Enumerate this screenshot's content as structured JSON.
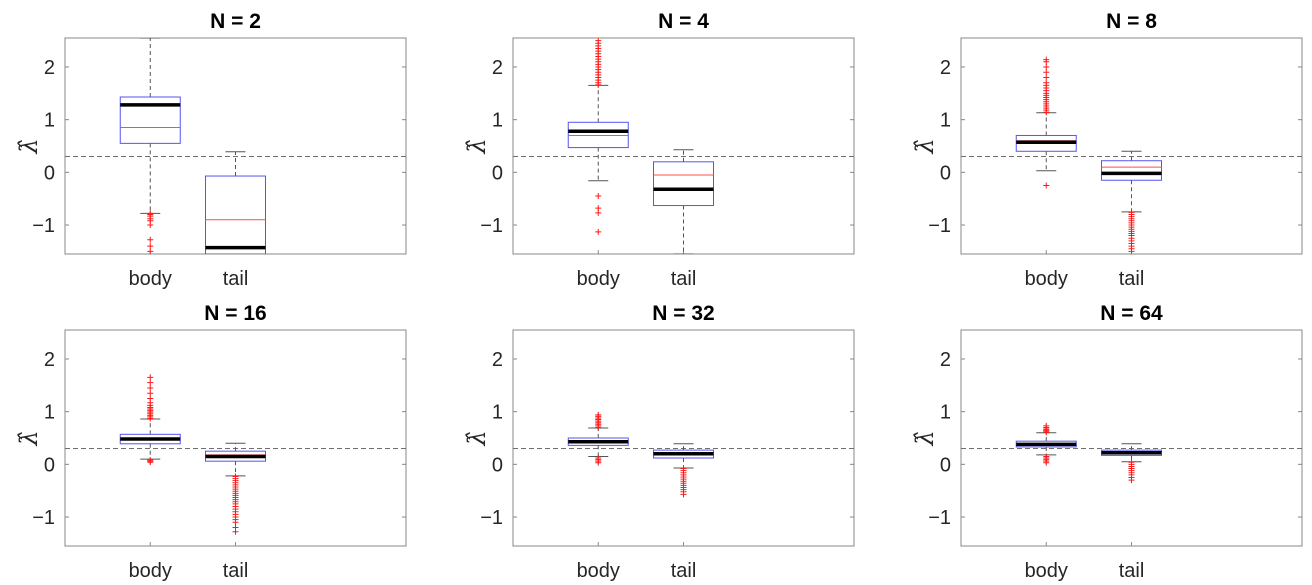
{
  "ylabel": "λ̂",
  "refline": 0.3,
  "colors": {
    "box": "#5555ee",
    "median": "#000000",
    "mean": "#ff4d4d",
    "outlier": "#ff1a1a",
    "whisker": "#555555",
    "axes": "#888888",
    "refline": "#6e6e6e"
  },
  "chart_data": [
    {
      "type": "box",
      "title": "N = 2",
      "categories": [
        "body",
        "tail"
      ],
      "ylim": [
        -1.55,
        2.55
      ],
      "yticks": [
        -1,
        0,
        1,
        2
      ],
      "boxes": [
        {
          "label": "body",
          "q1": 0.55,
          "q3": 1.43,
          "median": 1.28,
          "mean": 0.85,
          "lower_whisker": -0.78,
          "upper_whisker": 2.55,
          "outliers": [
            -0.78,
            -0.8,
            -0.83,
            -0.88,
            -0.92,
            -1.0,
            -1.28,
            -1.4,
            -1.5
          ]
        },
        {
          "label": "tail",
          "q1": -1.55,
          "q3": -0.07,
          "median": -1.43,
          "mean": -0.9,
          "lower_whisker": -1.55,
          "upper_whisker": 0.39,
          "outliers": []
        }
      ]
    },
    {
      "type": "box",
      "title": "N = 4",
      "categories": [
        "body",
        "tail"
      ],
      "ylim": [
        -1.55,
        2.55
      ],
      "yticks": [
        -1,
        0,
        1,
        2
      ],
      "boxes": [
        {
          "label": "body",
          "q1": 0.47,
          "q3": 0.95,
          "median": 0.78,
          "mean": 0.7,
          "lower_whisker": -0.16,
          "upper_whisker": 1.65,
          "outliers": [
            1.66,
            1.7,
            1.75,
            1.8,
            1.85,
            1.9,
            1.95,
            2.0,
            2.05,
            2.1,
            2.15,
            2.2,
            2.25,
            2.3,
            2.35,
            2.4,
            2.45,
            2.5,
            -0.45,
            -0.68,
            -0.77,
            -1.13
          ]
        },
        {
          "label": "tail",
          "q1": -0.63,
          "q3": 0.2,
          "median": -0.32,
          "mean": -0.05,
          "lower_whisker": -1.55,
          "upper_whisker": 0.43,
          "outliers": []
        }
      ]
    },
    {
      "type": "box",
      "title": "N = 8",
      "categories": [
        "body",
        "tail"
      ],
      "ylim": [
        -1.55,
        2.55
      ],
      "yticks": [
        -1,
        0,
        1,
        2
      ],
      "boxes": [
        {
          "label": "body",
          "q1": 0.4,
          "q3": 0.7,
          "median": 0.57,
          "mean": 0.6,
          "lower_whisker": 0.03,
          "upper_whisker": 1.13,
          "outliers": [
            1.14,
            1.18,
            1.22,
            1.26,
            1.3,
            1.34,
            1.38,
            1.42,
            1.46,
            1.5,
            1.55,
            1.6,
            1.65,
            1.7,
            1.8,
            1.9,
            2.0,
            2.1,
            2.14,
            -0.25
          ]
        },
        {
          "label": "tail",
          "q1": -0.15,
          "q3": 0.22,
          "median": -0.02,
          "mean": 0.1,
          "lower_whisker": -0.75,
          "upper_whisker": 0.4,
          "outliers": [
            -0.76,
            -0.8,
            -0.84,
            -0.88,
            -0.92,
            -0.96,
            -1.0,
            -1.04,
            -1.08,
            -1.12,
            -1.16,
            -1.2,
            -1.25,
            -1.3,
            -1.35,
            -1.4,
            -1.45,
            -1.5
          ]
        }
      ]
    },
    {
      "type": "box",
      "title": "N = 16",
      "categories": [
        "body",
        "tail"
      ],
      "ylim": [
        -1.55,
        2.55
      ],
      "yticks": [
        -1,
        0,
        1,
        2
      ],
      "boxes": [
        {
          "label": "body",
          "q1": 0.39,
          "q3": 0.57,
          "median": 0.48,
          "mean": 0.5,
          "lower_whisker": 0.1,
          "upper_whisker": 0.86,
          "outliers": [
            0.87,
            0.9,
            0.93,
            0.96,
            0.99,
            1.02,
            1.05,
            1.08,
            1.12,
            1.17,
            1.25,
            1.35,
            1.45,
            1.55,
            1.65,
            0.08,
            0.06,
            0.04
          ]
        },
        {
          "label": "tail",
          "q1": 0.06,
          "q3": 0.25,
          "median": 0.15,
          "mean": 0.18,
          "lower_whisker": -0.22,
          "upper_whisker": 0.4,
          "outliers": [
            -0.23,
            -0.27,
            -0.31,
            -0.35,
            -0.39,
            -0.43,
            -0.47,
            -0.51,
            -0.55,
            -0.59,
            -0.63,
            -0.67,
            -0.71,
            -0.75,
            -0.8,
            -0.85,
            -0.9,
            -0.95,
            -1.0,
            -1.05,
            -1.1,
            -1.2,
            -1.28
          ]
        }
      ]
    },
    {
      "type": "box",
      "title": "N = 32",
      "categories": [
        "body",
        "tail"
      ],
      "ylim": [
        -1.55,
        2.55
      ],
      "yticks": [
        -1,
        0,
        1,
        2
      ],
      "boxes": [
        {
          "label": "body",
          "q1": 0.36,
          "q3": 0.5,
          "median": 0.43,
          "mean": 0.44,
          "lower_whisker": 0.15,
          "upper_whisker": 0.69,
          "outliers": [
            0.7,
            0.73,
            0.76,
            0.79,
            0.82,
            0.85,
            0.88,
            0.91,
            0.94,
            0.12,
            0.09,
            0.06,
            0.03
          ]
        },
        {
          "label": "tail",
          "q1": 0.12,
          "q3": 0.27,
          "median": 0.2,
          "mean": 0.21,
          "lower_whisker": -0.07,
          "upper_whisker": 0.39,
          "outliers": [
            -0.08,
            -0.12,
            -0.16,
            -0.2,
            -0.24,
            -0.28,
            -0.32,
            -0.36,
            -0.4,
            -0.44,
            -0.48,
            -0.52,
            -0.57
          ]
        }
      ]
    },
    {
      "type": "box",
      "title": "N = 64",
      "categories": [
        "body",
        "tail"
      ],
      "ylim": [
        -1.55,
        2.55
      ],
      "yticks": [
        -1,
        0,
        1,
        2
      ],
      "boxes": [
        {
          "label": "body",
          "q1": 0.33,
          "q3": 0.44,
          "median": 0.38,
          "mean": 0.39,
          "lower_whisker": 0.18,
          "upper_whisker": 0.6,
          "outliers": [
            0.61,
            0.63,
            0.65,
            0.67,
            0.7,
            0.73,
            0.15,
            0.12,
            0.09,
            0.06,
            0.03
          ]
        },
        {
          "label": "tail",
          "q1": 0.17,
          "q3": 0.27,
          "median": 0.22,
          "mean": 0.23,
          "lower_whisker": 0.05,
          "upper_whisker": 0.39,
          "outliers": [
            0.04,
            0.0,
            -0.04,
            -0.08,
            -0.12,
            -0.16,
            -0.2,
            -0.25,
            -0.3
          ]
        }
      ]
    }
  ]
}
